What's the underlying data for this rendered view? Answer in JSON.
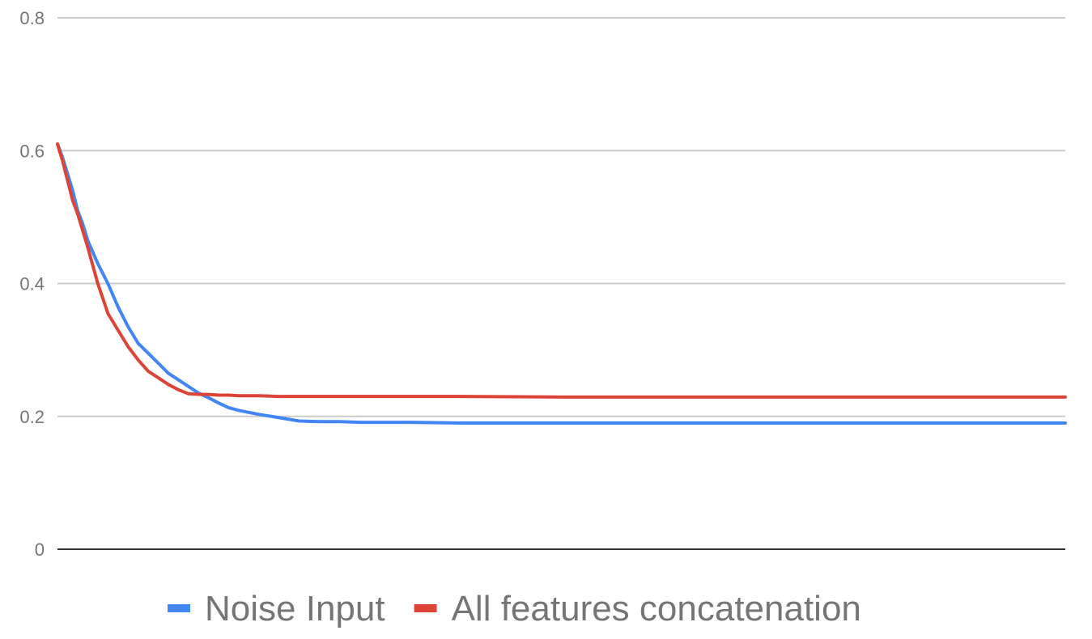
{
  "chart_data": {
    "type": "line",
    "title": "",
    "xlabel": "",
    "ylabel": "",
    "ylim": [
      0,
      0.8
    ],
    "y_ticks": [
      "0",
      "0.2",
      "0.4",
      "0.6",
      "0.8"
    ],
    "y_tick_values": [
      0,
      0.2,
      0.4,
      0.6,
      0.8
    ],
    "xlim": [
      0,
      1000
    ],
    "grid": true,
    "legend_position": "bottom",
    "series": [
      {
        "name": "Noise Input",
        "color": "#4285f4",
        "x": [
          0,
          5,
          10,
          15,
          20,
          25,
          30,
          40,
          50,
          60,
          70,
          80,
          90,
          100,
          110,
          120,
          130,
          140,
          150,
          160,
          170,
          180,
          200,
          220,
          240,
          260,
          280,
          300,
          350,
          400,
          500,
          600,
          700,
          800,
          900,
          1000
        ],
        "values": [
          0.61,
          0.59,
          0.565,
          0.54,
          0.51,
          0.49,
          0.465,
          0.43,
          0.4,
          0.365,
          0.335,
          0.31,
          0.295,
          0.28,
          0.265,
          0.255,
          0.245,
          0.235,
          0.228,
          0.22,
          0.213,
          0.209,
          0.203,
          0.198,
          0.193,
          0.192,
          0.192,
          0.191,
          0.191,
          0.19,
          0.19,
          0.19,
          0.19,
          0.19,
          0.19,
          0.19
        ]
      },
      {
        "name": "All features concatenation",
        "color": "#db4437",
        "x": [
          0,
          5,
          10,
          15,
          20,
          25,
          30,
          40,
          50,
          60,
          70,
          80,
          90,
          100,
          110,
          120,
          130,
          140,
          150,
          160,
          170,
          180,
          200,
          220,
          240,
          260,
          280,
          300,
          350,
          400,
          500,
          600,
          700,
          800,
          900,
          1000
        ],
        "values": [
          0.61,
          0.585,
          0.555,
          0.525,
          0.505,
          0.48,
          0.455,
          0.4,
          0.355,
          0.33,
          0.305,
          0.285,
          0.268,
          0.258,
          0.248,
          0.24,
          0.234,
          0.233,
          0.233,
          0.232,
          0.232,
          0.231,
          0.231,
          0.23,
          0.23,
          0.23,
          0.23,
          0.23,
          0.23,
          0.23,
          0.229,
          0.229,
          0.229,
          0.229,
          0.229,
          0.229
        ]
      }
    ]
  }
}
